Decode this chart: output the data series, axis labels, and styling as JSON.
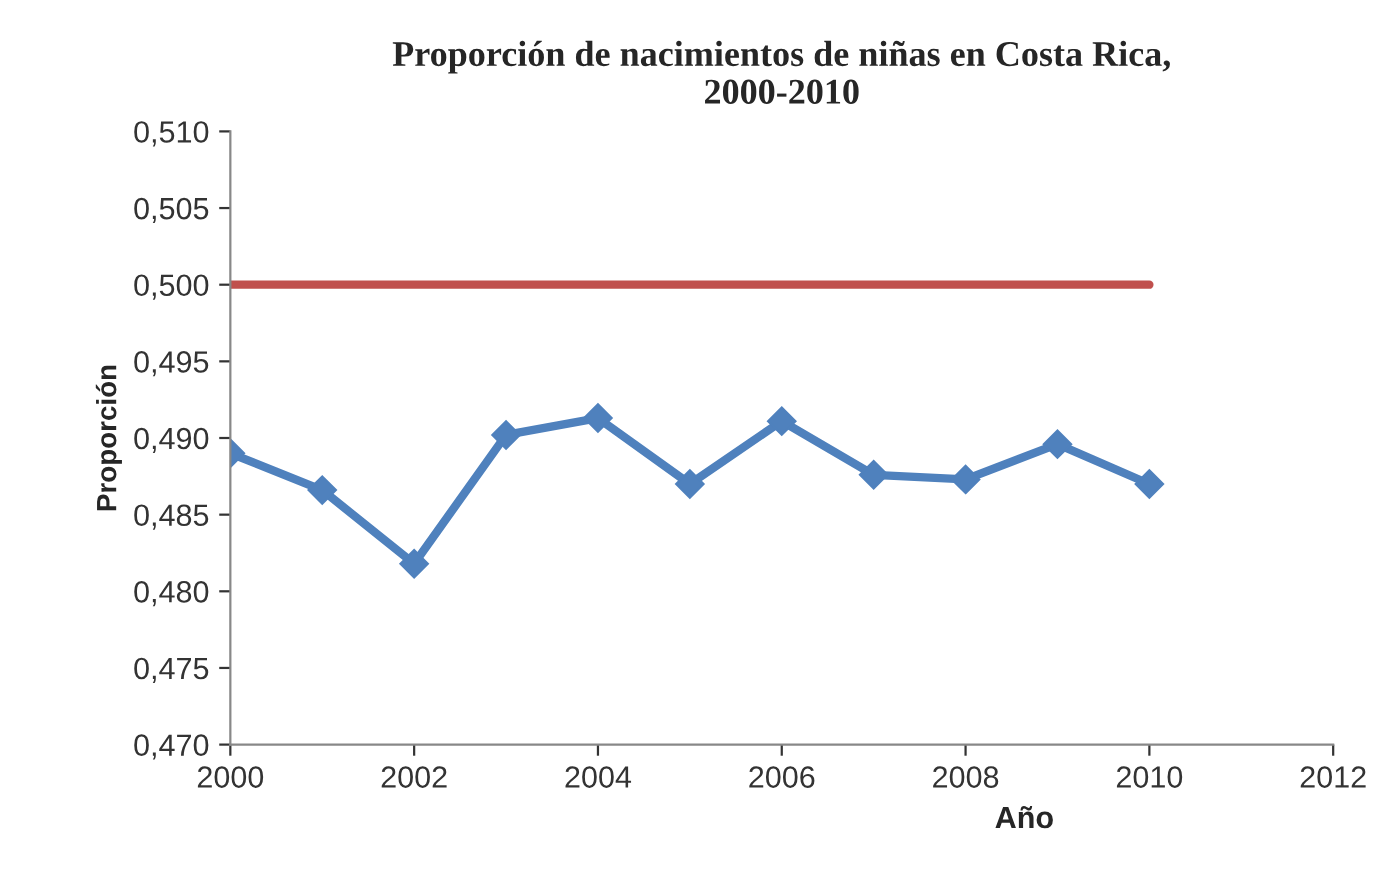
{
  "chart_data": {
    "type": "line",
    "title": "Proporción de nacimientos de niñas en Costa Rica,\n2000-2010",
    "xlabel": "Año",
    "ylabel": "Proporción",
    "x": [
      2000,
      2001,
      2002,
      2003,
      2004,
      2005,
      2006,
      2007,
      2008,
      2009,
      2010
    ],
    "series": [
      {
        "color": "#4f81bd",
        "marker": "diamond",
        "values": [
          0.489,
          0.4866,
          0.4818,
          0.4902,
          0.4913,
          0.487,
          0.4911,
          0.4876,
          0.4873,
          0.4896,
          0.487
        ]
      },
      {
        "color": "#c0504d",
        "marker": "none",
        "x": [
          2000,
          2010
        ],
        "values": [
          0.5,
          0.5
        ]
      }
    ],
    "xlim": [
      2000,
      2012
    ],
    "xticks": [
      2000,
      2002,
      2004,
      2006,
      2008,
      2010,
      2012
    ],
    "ylim": [
      0.47,
      0.51
    ],
    "yticks": [
      {
        "value": 0.47,
        "label": "0,470"
      },
      {
        "value": 0.475,
        "label": "0,475"
      },
      {
        "value": 0.48,
        "label": "0,480"
      },
      {
        "value": 0.485,
        "label": "0,485"
      },
      {
        "value": 0.49,
        "label": "0,490"
      },
      {
        "value": 0.495,
        "label": "0,495"
      },
      {
        "value": 0.5,
        "label": "0,500"
      },
      {
        "value": 0.505,
        "label": "0,505"
      },
      {
        "value": 0.51,
        "label": "0,510"
      }
    ],
    "grid": false
  }
}
